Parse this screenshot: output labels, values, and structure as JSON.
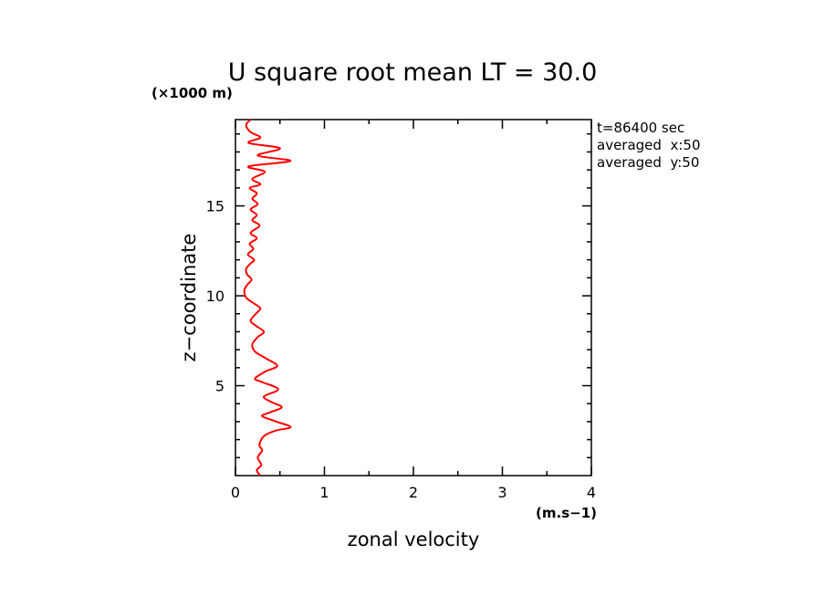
{
  "chart_data": {
    "type": "line",
    "title": "U square root mean LT = 30.0",
    "xlabel": "zonal velocity",
    "xunit": "(m.s−1)",
    "ylabel": "z−coordinate",
    "yunit": "(×1000 m)",
    "xlim": [
      0,
      4
    ],
    "ylim": [
      0,
      19.8
    ],
    "x_ticks": [
      "0",
      "1",
      "2",
      "3",
      "4"
    ],
    "y_ticks": [
      "5",
      "10",
      "15"
    ],
    "annotations": [
      "t=86400 sec",
      "averaged  x:50",
      "averaged  y:50"
    ],
    "grid": false,
    "line_color": "#ff0000",
    "series": [
      {
        "x": [
          0.28,
          0.24,
          0.29,
          0.25,
          0.3,
          0.27,
          0.32,
          0.45,
          0.62,
          0.46,
          0.3,
          0.38,
          0.52,
          0.4,
          0.32,
          0.48,
          0.3,
          0.22,
          0.34,
          0.47,
          0.35,
          0.22,
          0.19,
          0.25,
          0.32,
          0.24,
          0.17,
          0.23,
          0.28,
          0.2,
          0.12,
          0.1,
          0.13,
          0.18,
          0.13,
          0.12,
          0.17,
          0.21,
          0.14,
          0.2,
          0.16,
          0.24,
          0.17,
          0.27,
          0.19,
          0.24,
          0.17,
          0.25,
          0.19,
          0.24,
          0.16,
          0.28,
          0.19,
          0.33,
          0.15,
          0.62,
          0.25,
          0.5,
          0.15,
          0.28,
          0.17,
          0.12,
          0.17
        ],
        "y": [
          0.0,
          0.3,
          0.6,
          1.0,
          1.4,
          1.7,
          2.2,
          2.5,
          2.7,
          3.0,
          3.3,
          3.5,
          3.8,
          4.1,
          4.4,
          4.8,
          5.2,
          5.4,
          5.8,
          6.1,
          6.5,
          6.9,
          7.3,
          7.7,
          8.0,
          8.3,
          8.6,
          9.0,
          9.3,
          9.6,
          9.9,
          10.3,
          10.6,
          10.9,
          11.2,
          11.5,
          11.8,
          12.0,
          12.3,
          12.6,
          12.9,
          13.2,
          13.5,
          13.9,
          14.2,
          14.5,
          14.8,
          15.1,
          15.4,
          15.7,
          16.0,
          16.2,
          16.5,
          16.9,
          17.2,
          17.5,
          17.8,
          18.2,
          18.5,
          18.8,
          19.1,
          19.5,
          19.8
        ]
      }
    ]
  }
}
